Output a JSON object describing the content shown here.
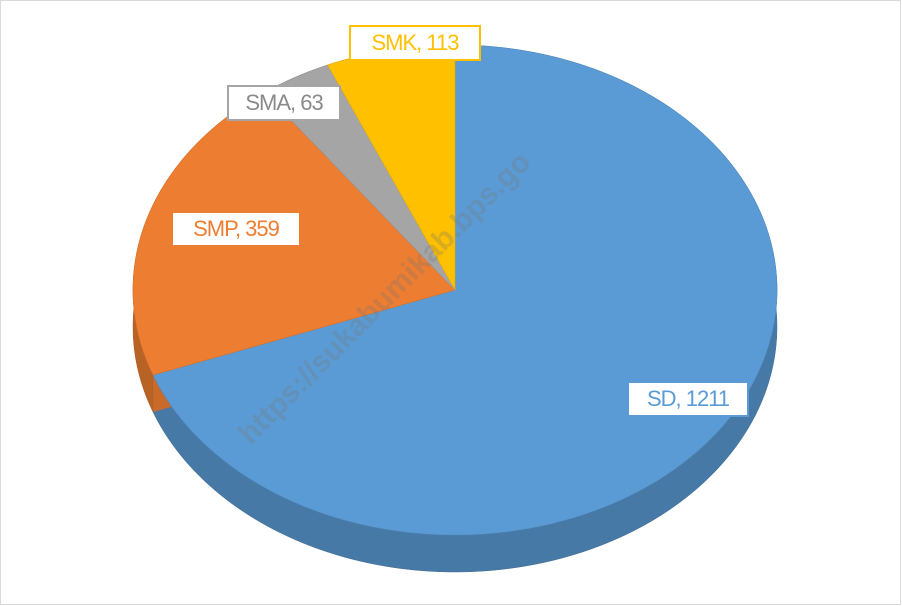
{
  "chart_data": {
    "type": "pie",
    "values": [
      1211,
      359,
      63,
      113
    ],
    "value_labels": [
      "SD, 1211",
      "SMP, 359",
      "SMA, 63",
      "SMK, 113"
    ],
    "colors": [
      "#5b9bd5",
      "#ed7d31",
      "#a5a5a5",
      "#ffc000"
    ],
    "watermark": "https://sukabumikab.bps.go"
  }
}
